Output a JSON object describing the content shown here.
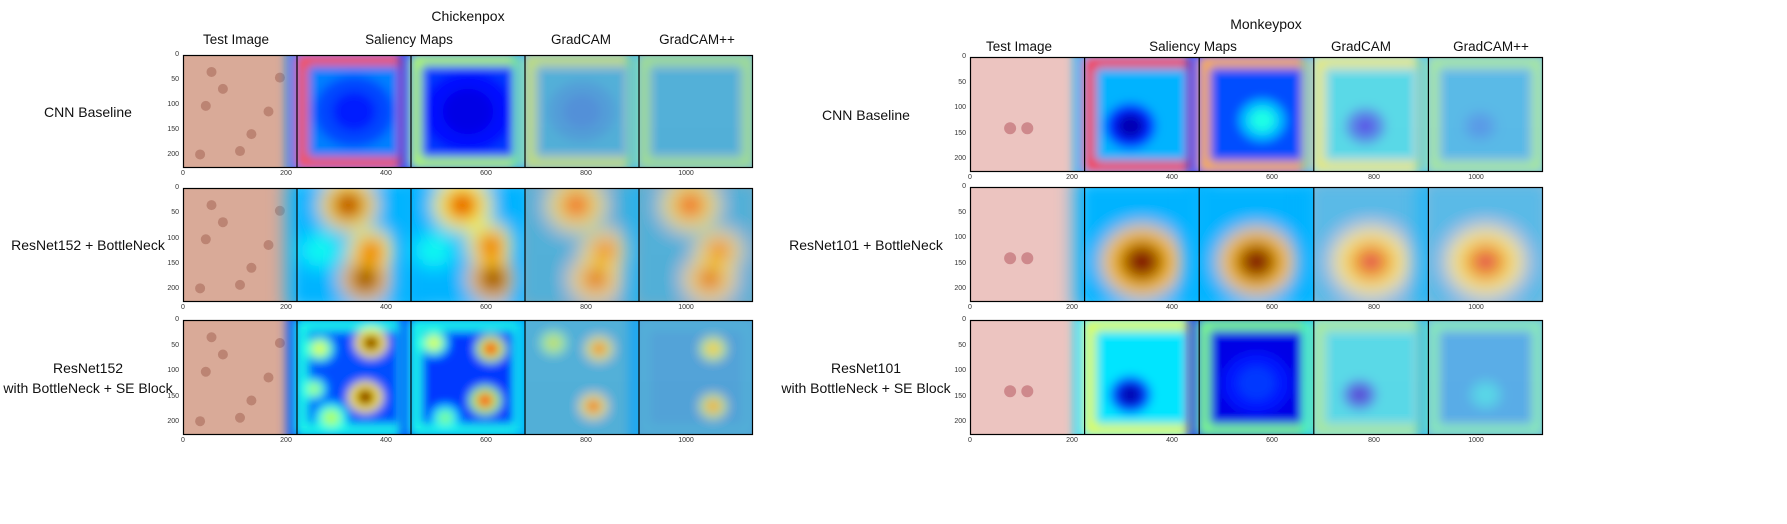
{
  "figures": [
    {
      "id": "chickenpox",
      "title": "Chickenpox",
      "columns": [
        "Test Image",
        "Saliency Maps",
        "GradCAM",
        "GradCAM++"
      ],
      "rows": [
        {
          "label": [
            "CNN Baseline"
          ]
        },
        {
          "label": [
            "ResNet152 + BottleNeck"
          ]
        },
        {
          "label": [
            "ResNet152",
            "with BottleNeck + SE Block"
          ]
        }
      ],
      "x_ticks": [
        "0",
        "200",
        "400",
        "600",
        "800",
        "1000"
      ],
      "y_ticks": [
        "0",
        "50",
        "100",
        "150",
        "200"
      ]
    },
    {
      "id": "monkeypox",
      "title": "Monkeypox",
      "columns": [
        "Test Image",
        "Saliency Maps",
        "GradCAM",
        "GradCAM++"
      ],
      "rows": [
        {
          "label": [
            "CNN Baseline"
          ]
        },
        {
          "label": [
            "ResNet101 + BottleNeck"
          ]
        },
        {
          "label": [
            "ResNet101",
            "with BottleNeck + SE Block"
          ]
        }
      ],
      "x_ticks": [
        "0",
        "200",
        "400",
        "600",
        "800",
        "1000"
      ],
      "y_ticks": [
        "0",
        "50",
        "100",
        "150",
        "200"
      ]
    }
  ],
  "colors": {
    "chickenpox_skin": "#d9aa98",
    "monkeypox_skin": "#ecc4c0",
    "heat_low": "#00008f",
    "heat_high": "#800000"
  }
}
